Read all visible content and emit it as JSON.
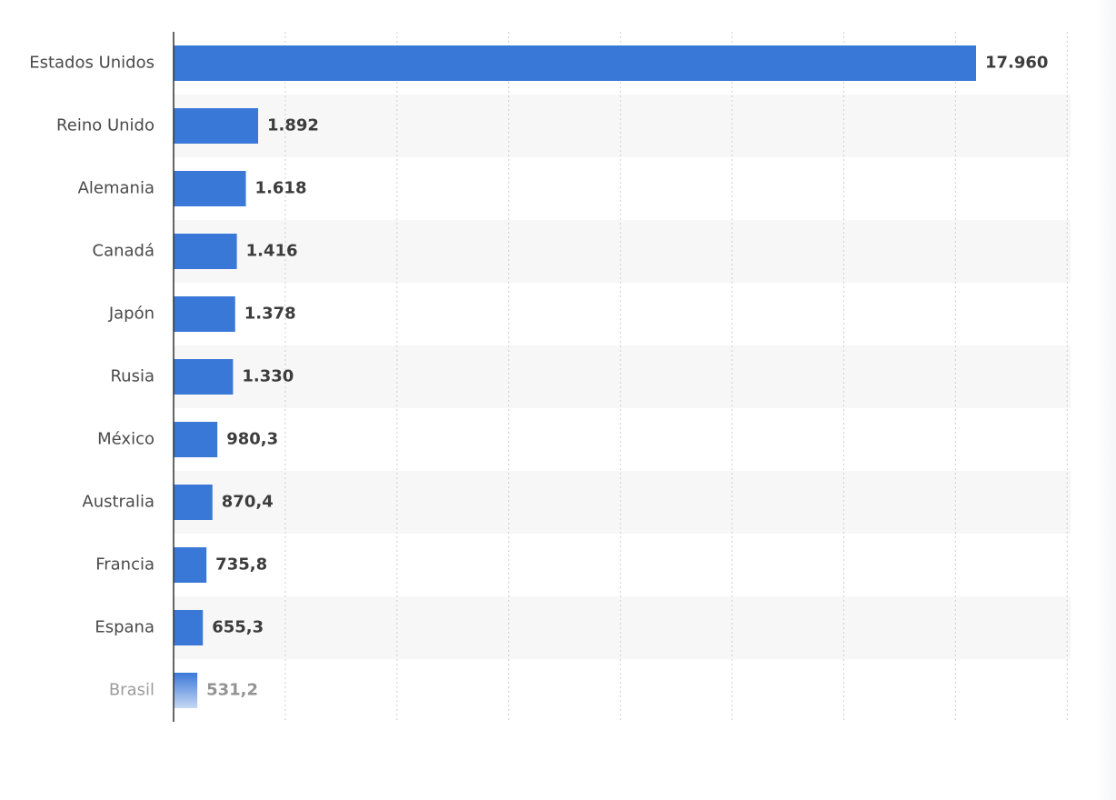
{
  "chart_data": {
    "type": "bar",
    "orientation": "horizontal",
    "categories": [
      "Estados Unidos",
      "Reino Unido",
      "Alemania",
      "Canadá",
      "Japón",
      "Rusia",
      "México",
      "Australia",
      "Francia",
      "Espana",
      "Brasil"
    ],
    "values": [
      17960,
      1892,
      1618,
      1416,
      1378,
      1330,
      980.3,
      870.4,
      735.8,
      655.3,
      531.2
    ],
    "value_labels": [
      "17.960",
      "1.892",
      "1.618",
      "1.416",
      "1.378",
      "1.330",
      "980,3",
      "870,4",
      "735,8",
      "655,3",
      "531,2"
    ],
    "title": "",
    "xlabel": "",
    "ylabel": "",
    "xlim": [
      0,
      20000
    ],
    "grid": true,
    "bar_color": "#3a78d8",
    "band_color": "#f7f7f7",
    "faded_last_row": true
  }
}
